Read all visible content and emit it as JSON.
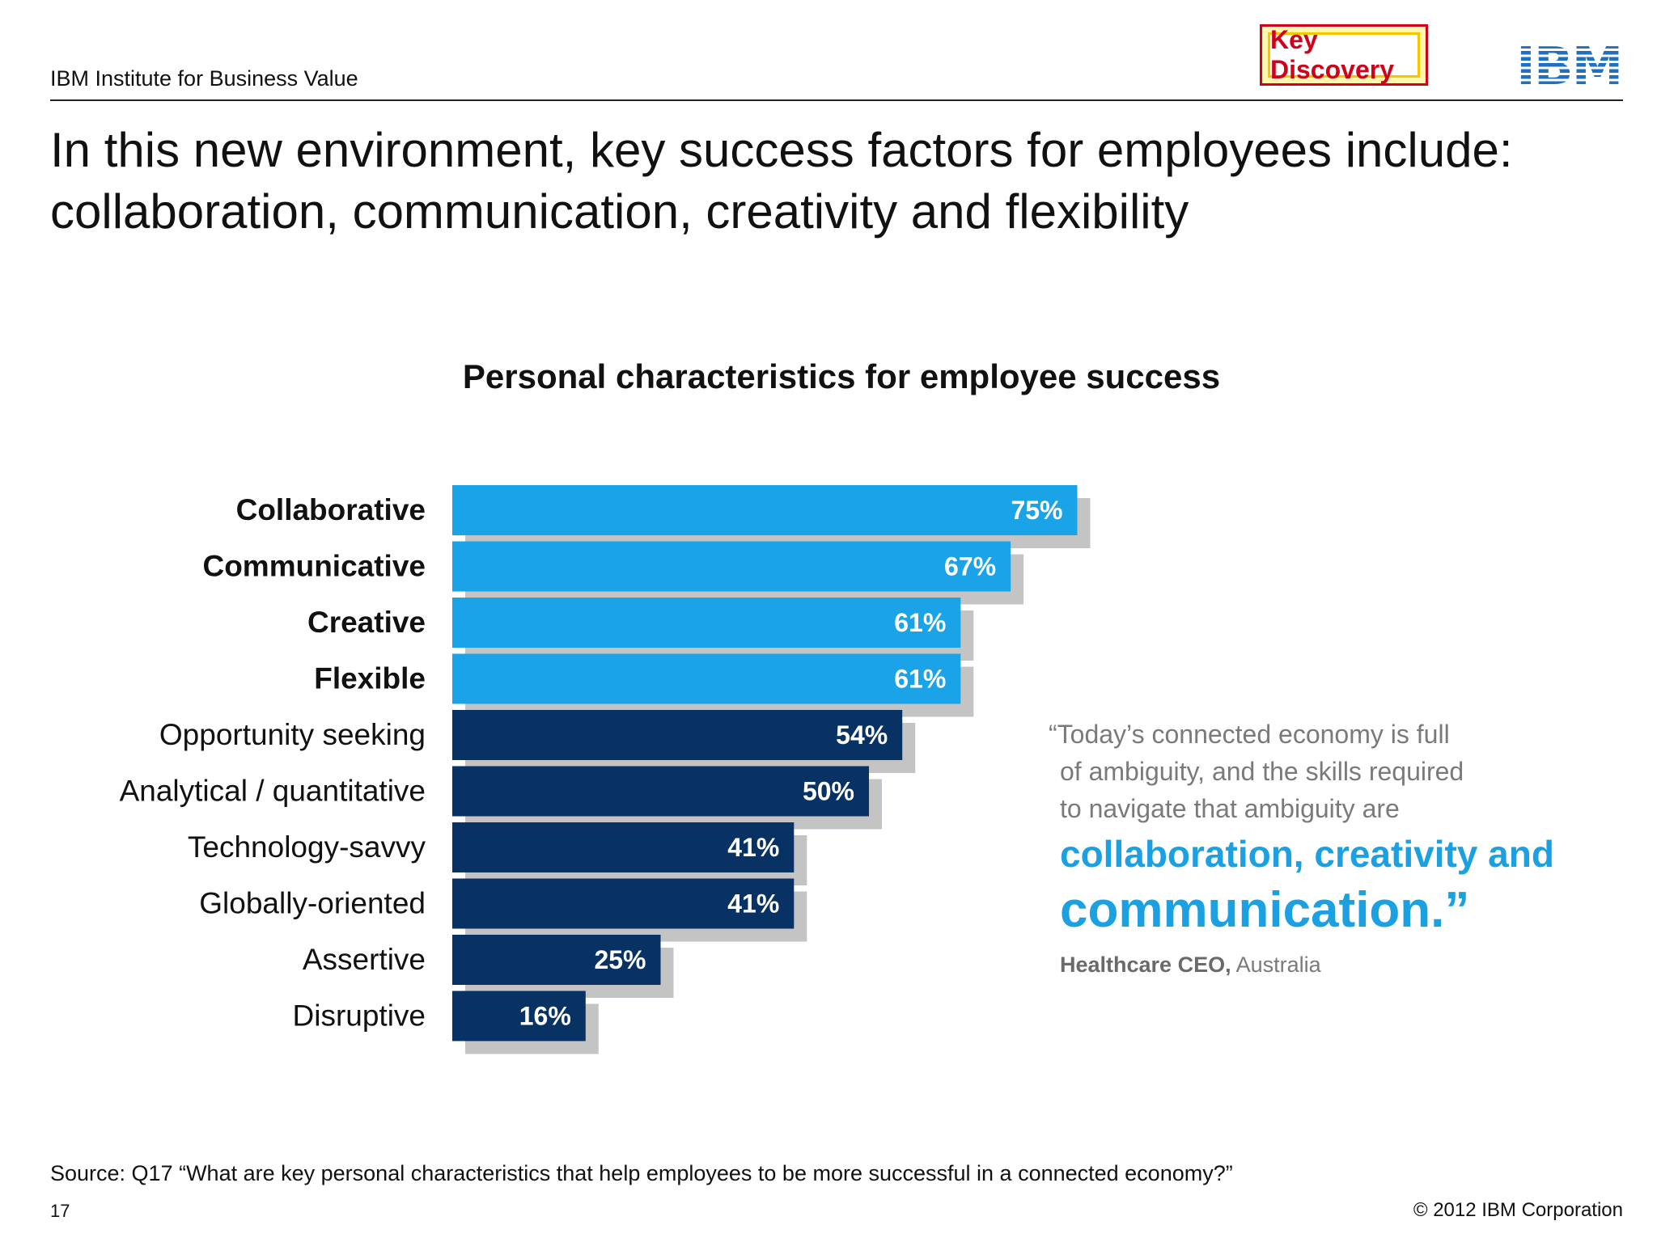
{
  "header": {
    "org": "IBM Institute for Business Value",
    "badge": "Key Discovery",
    "logo_text": "IBM"
  },
  "headline": {
    "line1": "In this new environment, key success factors for employees include:",
    "line2": "collaboration, communication, creativity and flexibility"
  },
  "chart_data": {
    "type": "bar",
    "orientation": "horizontal",
    "title": "Personal characteristics for employee success",
    "categories": [
      "Collaborative",
      "Communicative",
      "Creative",
      "Flexible",
      "Opportunity seeking",
      "Analytical / quantitative",
      "Technology-savvy",
      "Globally-oriented",
      "Assertive",
      "Disruptive"
    ],
    "values": [
      75,
      67,
      61,
      61,
      54,
      50,
      41,
      41,
      25,
      16
    ],
    "value_labels": [
      "75%",
      "67%",
      "61%",
      "61%",
      "54%",
      "50%",
      "41%",
      "41%",
      "25%",
      "16%"
    ],
    "highlighted_categories": [
      "Collaborative",
      "Communicative",
      "Creative",
      "Flexible"
    ],
    "unit": "%",
    "grid": false,
    "legend": "none",
    "colors": {
      "highlight": "#1ba3e8",
      "normal": "#083264",
      "shadow": "#c4c4c4"
    }
  },
  "quote": {
    "line1": "“Today’s connected economy is full",
    "line2": "of ambiguity, and the skills required",
    "line3": "to navigate that ambiguity are",
    "emphasis1": "collaboration, creativity and",
    "emphasis2": "communication.”",
    "attribution_role": "Healthcare CEO,",
    "attribution_place": "Australia"
  },
  "footer": {
    "source": "Source:   Q17 “What are key personal characteristics that help employees to be more successful in a connected economy?”",
    "page": "17",
    "copyright": "© 2012 IBM Corporation"
  }
}
